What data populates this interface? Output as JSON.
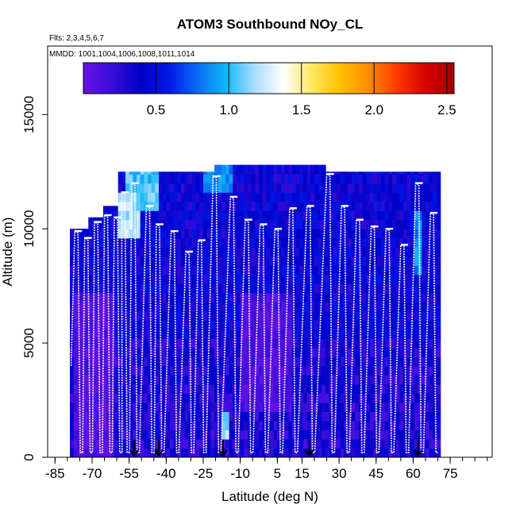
{
  "chart_data": {
    "type": "heatmap",
    "title": "ATOM3 Southbound NOy_CL",
    "subtitle_flights": "Flts: 2,3,4,5,6,7",
    "subtitle_dates": "MMDD: 1001,1004,1006,1008,1011,1014",
    "xlabel": "Latitude (deg N)",
    "ylabel": "Altitude (m)",
    "xlim": [
      -88,
      92
    ],
    "ylim": [
      0,
      18000
    ],
    "x_ticks": [
      -85,
      -70,
      -55,
      -40,
      -25,
      -10,
      5,
      15,
      30,
      45,
      60,
      75
    ],
    "x_tick_labels": [
      "-85",
      "-70",
      "-55",
      "-40",
      "-25",
      "-10",
      "5",
      "15",
      "30",
      "45",
      "60",
      "75"
    ],
    "y_ticks": [
      0,
      5000,
      10000,
      15000
    ],
    "y_tick_labels": [
      "0",
      "5000",
      "10000",
      "15000"
    ],
    "colorbar": {
      "range": [
        0.0,
        2.55
      ],
      "ticks": [
        0.5,
        1.0,
        1.5,
        2.0,
        2.5
      ],
      "tick_labels": [
        "0.5",
        "1.0",
        "1.5",
        "2.0",
        "2.5"
      ],
      "colors": [
        "#6a10e6",
        "#3a0fd8",
        "#0000c8",
        "#0018e8",
        "#0a6cf5",
        "#12b8f8",
        "#a8dcff",
        "#ffffff",
        "#ffe860",
        "#ffc000",
        "#ff8a00",
        "#ff3a00",
        "#d80000",
        "#a00000"
      ]
    },
    "grid": false,
    "coverage": {
      "lat_range": [
        -79,
        71
      ],
      "alt_max_profile": [
        {
          "lat": -79,
          "alt": 10000
        },
        {
          "lat": -73,
          "alt": 10500
        },
        {
          "lat": -67,
          "alt": 11000
        },
        {
          "lat": -60,
          "alt": 12500
        },
        {
          "lat": -30,
          "alt": 12500
        },
        {
          "lat": -23,
          "alt": 12500
        },
        {
          "lat": -22,
          "alt": 12800
        },
        {
          "lat": 23,
          "alt": 12800
        },
        {
          "lat": 24,
          "alt": 12500
        },
        {
          "lat": 68,
          "alt": 12500
        },
        {
          "lat": 71,
          "alt": 10500
        }
      ],
      "background_value": 0.35,
      "features": [
        {
          "lat": [
            -57,
            -44
          ],
          "alt": [
            10500,
            12500
          ],
          "value": 1.05
        },
        {
          "lat": [
            -60,
            -52
          ],
          "alt": [
            9500,
            11500
          ],
          "value": 1.2
        },
        {
          "lat": [
            -25,
            -14
          ],
          "alt": [
            11500,
            12500
          ],
          "value": 0.85
        },
        {
          "lat": [
            -18,
            -15
          ],
          "alt": [
            800,
            1600
          ],
          "value": 1.15
        },
        {
          "lat": [
            60,
            63
          ],
          "alt": [
            8000,
            10500
          ],
          "value": 0.85
        },
        {
          "lat": [
            -78,
            -62
          ],
          "alt": [
            0,
            7000
          ],
          "value": 0.08
        },
        {
          "lat": [
            -10,
            10
          ],
          "alt": [
            2000,
            7000
          ],
          "value": 0.1
        }
      ]
    },
    "profiles": {
      "series_name": "flight track",
      "high_alt": [
        {
          "lat": -77,
          "alt": 9900
        },
        {
          "lat": -73,
          "alt": 9600
        },
        {
          "lat": -69,
          "alt": 10300
        },
        {
          "lat": -65,
          "alt": 10600
        },
        {
          "lat": -61,
          "alt": 10500
        },
        {
          "lat": -58,
          "alt": 11600
        },
        {
          "lat": -54,
          "alt": 12000
        },
        {
          "lat": -48,
          "alt": 11000
        },
        {
          "lat": -44,
          "alt": 10200
        },
        {
          "lat": -38,
          "alt": 9900
        },
        {
          "lat": -32,
          "alt": 9000
        },
        {
          "lat": -27,
          "alt": 9500
        },
        {
          "lat": -21,
          "alt": 12300
        },
        {
          "lat": -14,
          "alt": 11400
        },
        {
          "lat": -8,
          "alt": 10400
        },
        {
          "lat": -2,
          "alt": 10200
        },
        {
          "lat": 4,
          "alt": 10000
        },
        {
          "lat": 10,
          "alt": 10900
        },
        {
          "lat": 17,
          "alt": 11000
        },
        {
          "lat": 25,
          "alt": 12400
        },
        {
          "lat": 31,
          "alt": 11000
        },
        {
          "lat": 37,
          "alt": 10400
        },
        {
          "lat": 43,
          "alt": 10100
        },
        {
          "lat": 49,
          "alt": 10000
        },
        {
          "lat": 55,
          "alt": 9300
        },
        {
          "lat": 61,
          "alt": 12000
        },
        {
          "lat": 67,
          "alt": 10700
        }
      ],
      "low_alt": 200
    },
    "stop_markers_lat": [
      -53,
      -43,
      -17,
      18,
      62
    ]
  }
}
